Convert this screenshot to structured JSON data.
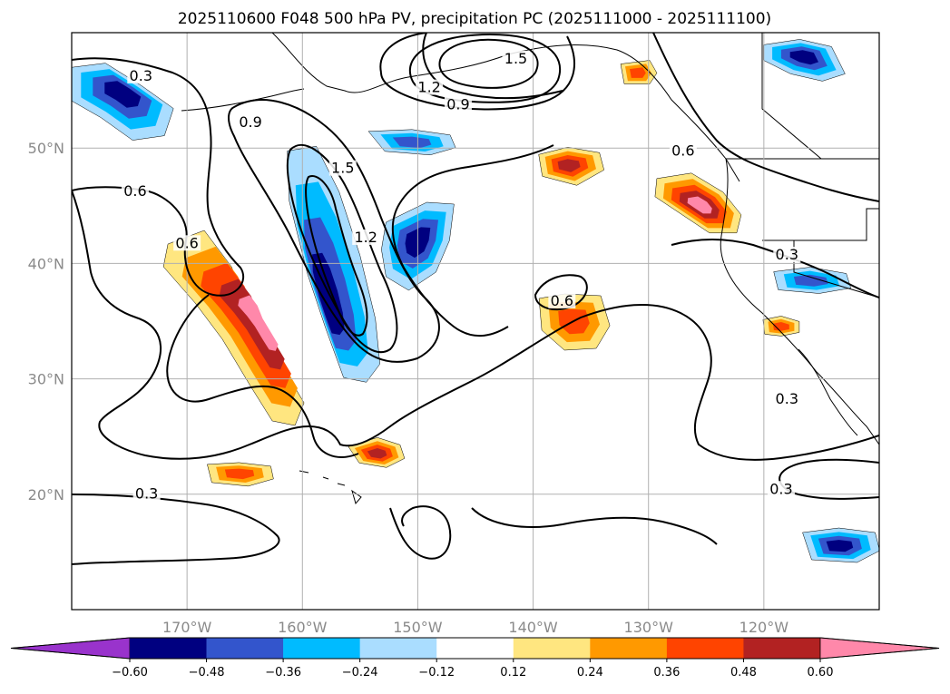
{
  "chart_data": {
    "type": "heatmap",
    "title": "2025110600 F048 500 hPa PV, precipitation PC (2025111000 - 2025111100)",
    "projection": "PlateCarree",
    "lon_range": [
      180,
      250
    ],
    "lat_range": [
      10,
      60
    ],
    "lon_ticks": [
      {
        "value": 190,
        "label": "170°W"
      },
      {
        "value": 200,
        "label": "160°W"
      },
      {
        "value": 210,
        "label": "150°W"
      },
      {
        "value": 220,
        "label": "140°W"
      },
      {
        "value": 230,
        "label": "130°W"
      },
      {
        "value": 240,
        "label": "120°W"
      }
    ],
    "lat_ticks": [
      {
        "value": 20,
        "label": "20°N"
      },
      {
        "value": 30,
        "label": "30°N"
      },
      {
        "value": 40,
        "label": "40°N"
      },
      {
        "value": 50,
        "label": "50°N"
      }
    ],
    "grid": true,
    "colorbar": {
      "orientation": "horizontal",
      "extend": "both",
      "levels": [
        -0.6,
        -0.48,
        -0.36,
        -0.24,
        -0.12,
        0.12,
        0.24,
        0.36,
        0.48,
        0.6
      ],
      "tick_labels": [
        "−0.60",
        "−0.48",
        "−0.36",
        "−0.24",
        "−0.12",
        "0.12",
        "0.24",
        "0.36",
        "0.48",
        "0.60"
      ],
      "colors": [
        "#9933cc",
        "#000080",
        "#3355cc",
        "#00bbff",
        "#aaddff",
        "#ffffff",
        "#ffe680",
        "#ff9900",
        "#ff4400",
        "#b22222",
        "#ff88aa"
      ]
    },
    "contour_field": "500 hPa PV",
    "contour_levels": [
      0.3,
      0.6,
      0.9,
      1.2,
      1.5
    ],
    "contour_labels": [
      {
        "text": "0.3",
        "lon": 186,
        "lat": 56
      },
      {
        "text": "0.9",
        "lon": 195.5,
        "lat": 52
      },
      {
        "text": "1.2",
        "lon": 211,
        "lat": 55
      },
      {
        "text": "0.9",
        "lon": 213.5,
        "lat": 53.5
      },
      {
        "text": "1.5",
        "lon": 218.5,
        "lat": 57.5
      },
      {
        "text": "0.6",
        "lon": 185.5,
        "lat": 46
      },
      {
        "text": "1.5",
        "lon": 203.5,
        "lat": 48
      },
      {
        "text": "1.2",
        "lon": 205.5,
        "lat": 42
      },
      {
        "text": "0.6",
        "lon": 190,
        "lat": 41.5
      },
      {
        "text": "0.6",
        "lon": 222.5,
        "lat": 36.5
      },
      {
        "text": "0.6",
        "lon": 233,
        "lat": 49.5
      },
      {
        "text": "0.3",
        "lon": 242,
        "lat": 40.5
      },
      {
        "text": "0.3",
        "lon": 242,
        "lat": 28
      },
      {
        "text": "0.3",
        "lon": 186.5,
        "lat": 19.8
      },
      {
        "text": "0.3",
        "lon": 241.5,
        "lat": 20.2
      }
    ],
    "precip_pc_features": [
      {
        "name": "alaska-gulf-positive",
        "lon": 229,
        "lat": 56.5,
        "class": 0.36
      },
      {
        "name": "west-aleutian-negative",
        "lon": 184.5,
        "lat": 55,
        "class": -0.48
      },
      {
        "name": "dateline-trough-negative",
        "lon": 202,
        "lat": 36,
        "class": -0.48
      },
      {
        "name": "subtropical-band-positive",
        "lon": 197,
        "lat": 35,
        "class": 0.6
      },
      {
        "name": "mid-pacific-negative",
        "lon": 210,
        "lat": 42,
        "class": -0.48
      },
      {
        "name": "north-negative-patch",
        "lon": 209.5,
        "lat": 50.5,
        "class": -0.36
      },
      {
        "name": "pacific-nw-positive",
        "lon": 234.5,
        "lat": 45,
        "class": 0.6
      },
      {
        "name": "central-positive",
        "lon": 223.5,
        "lat": 35,
        "class": 0.36
      },
      {
        "name": "hawaii-north-positive",
        "lon": 206.5,
        "lat": 23.5,
        "class": 0.48
      },
      {
        "name": "west-positive",
        "lon": 194.5,
        "lat": 21.8,
        "class": 0.36
      },
      {
        "name": "mexico-negative",
        "lon": 246.5,
        "lat": 15.5,
        "class": -0.48
      },
      {
        "name": "bc-coast-negative",
        "lon": 243.5,
        "lat": 58,
        "class": -0.48
      },
      {
        "name": "california-negative",
        "lon": 244,
        "lat": 38.5,
        "class": -0.36
      },
      {
        "name": "baja-positive",
        "lon": 241.5,
        "lat": 34.5,
        "class": 0.36
      },
      {
        "name": "east-subtropic-positive",
        "lon": 223,
        "lat": 48.5,
        "class": 0.48
      }
    ],
    "xlabel": "",
    "ylabel": ""
  }
}
